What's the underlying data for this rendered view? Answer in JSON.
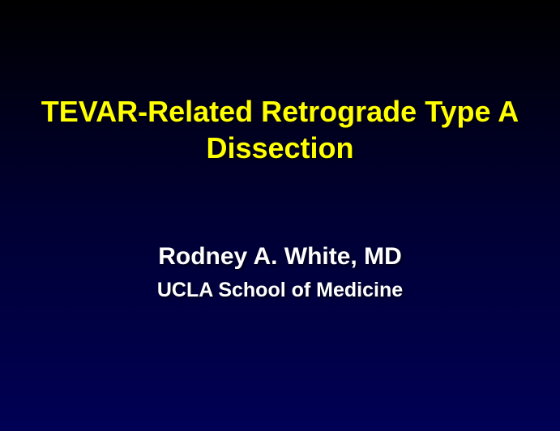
{
  "slide": {
    "title": "TEVAR-Related Retrograde Type A Dissection",
    "author": "Rodney A. White, MD",
    "affiliation": "UCLA School of Medicine",
    "title_color": "#ffff00",
    "text_color": "#ffffff",
    "background_gradient_top": "#000000",
    "background_gradient_mid": "#000033",
    "background_gradient_bottom": "#000055",
    "title_fontsize": 36,
    "author_fontsize": 30,
    "affiliation_fontsize": 25,
    "font_family": "Arial"
  }
}
